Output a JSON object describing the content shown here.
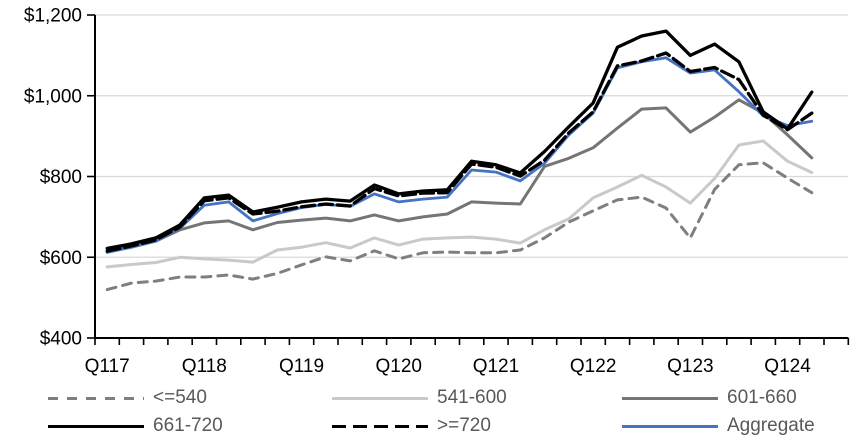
{
  "chart_data": {
    "type": "line",
    "title": "",
    "xlabel": "",
    "ylabel": "",
    "ylim": [
      400,
      1200
    ],
    "yticks": [
      400,
      600,
      800,
      1000,
      1200
    ],
    "ytick_labels": [
      "$400",
      "$600",
      "$800",
      "$1,000",
      "$1,200"
    ],
    "x_axis_shown_labels": [
      "Q117",
      "Q118",
      "Q119",
      "Q120",
      "Q121",
      "Q122",
      "Q123",
      "Q124"
    ],
    "categories": [
      "Q117",
      "Q217",
      "Q317",
      "Q417",
      "Q118",
      "Q218",
      "Q318",
      "Q418",
      "Q119",
      "Q219",
      "Q319",
      "Q419",
      "Q120",
      "Q220",
      "Q320",
      "Q420",
      "Q121",
      "Q221",
      "Q321",
      "Q421",
      "Q122",
      "Q222",
      "Q322",
      "Q422",
      "Q123",
      "Q223",
      "Q323",
      "Q423",
      "Q124",
      "Q224"
    ],
    "grid": "horizontal",
    "legend_position": "bottom",
    "axis_color": "#000000",
    "gridline_color": "#D9D9D9",
    "legend_text_color": "#595959",
    "series": [
      {
        "name": "<=540",
        "color": "#7F7F7F",
        "dash": "9 7",
        "width": 3,
        "values": [
          520,
          536,
          541,
          551,
          551,
          556,
          546,
          560,
          581,
          601,
          591,
          616,
          596,
          611,
          613,
          611,
          611,
          618,
          648,
          687,
          715,
          742,
          749,
          722,
          648,
          768,
          829,
          834,
          796,
          760
        ]
      },
      {
        "name": "541-600",
        "color": "#C9C9C9",
        "dash": "",
        "width": 3,
        "values": [
          576,
          582,
          587,
          600,
          596,
          593,
          588,
          618,
          625,
          636,
          623,
          648,
          630,
          645,
          648,
          650,
          645,
          635,
          668,
          695,
          747,
          774,
          803,
          774,
          734,
          795,
          878,
          888,
          838,
          810
        ]
      },
      {
        "name": "601-660",
        "color": "#757575",
        "dash": "",
        "width": 3,
        "values": [
          615,
          625,
          640,
          668,
          685,
          690,
          668,
          686,
          692,
          697,
          690,
          705,
          690,
          700,
          707,
          737,
          734,
          732,
          825,
          845,
          871,
          920,
          967,
          970,
          910,
          947,
          990,
          957,
          903,
          846
        ]
      },
      {
        "name": "661-720",
        "color": "#000000",
        "dash": "",
        "width": 3.3,
        "values": [
          622,
          633,
          648,
          680,
          747,
          754,
          712,
          724,
          737,
          744,
          739,
          779,
          757,
          764,
          767,
          838,
          829,
          809,
          862,
          923,
          982,
          1120,
          1148,
          1160,
          1100,
          1128,
          1084,
          960,
          918,
          1009
        ]
      },
      {
        "name": ">=720",
        "color": "#000000",
        "dash": "13 5",
        "width": 3.3,
        "values": [
          615,
          628,
          643,
          675,
          740,
          747,
          707,
          714,
          725,
          732,
          727,
          770,
          752,
          759,
          760,
          831,
          823,
          801,
          840,
          908,
          960,
          1074,
          1086,
          1106,
          1060,
          1070,
          1040,
          952,
          916,
          957
        ]
      },
      {
        "name": "Aggregate",
        "color": "#4472C4",
        "dash": "",
        "width": 2.8,
        "values": [
          612,
          625,
          640,
          672,
          729,
          737,
          690,
          708,
          723,
          731,
          726,
          757,
          737,
          744,
          749,
          816,
          811,
          789,
          833,
          903,
          957,
          1069,
          1084,
          1094,
          1056,
          1064,
          1010,
          950,
          926,
          937
        ]
      }
    ]
  }
}
